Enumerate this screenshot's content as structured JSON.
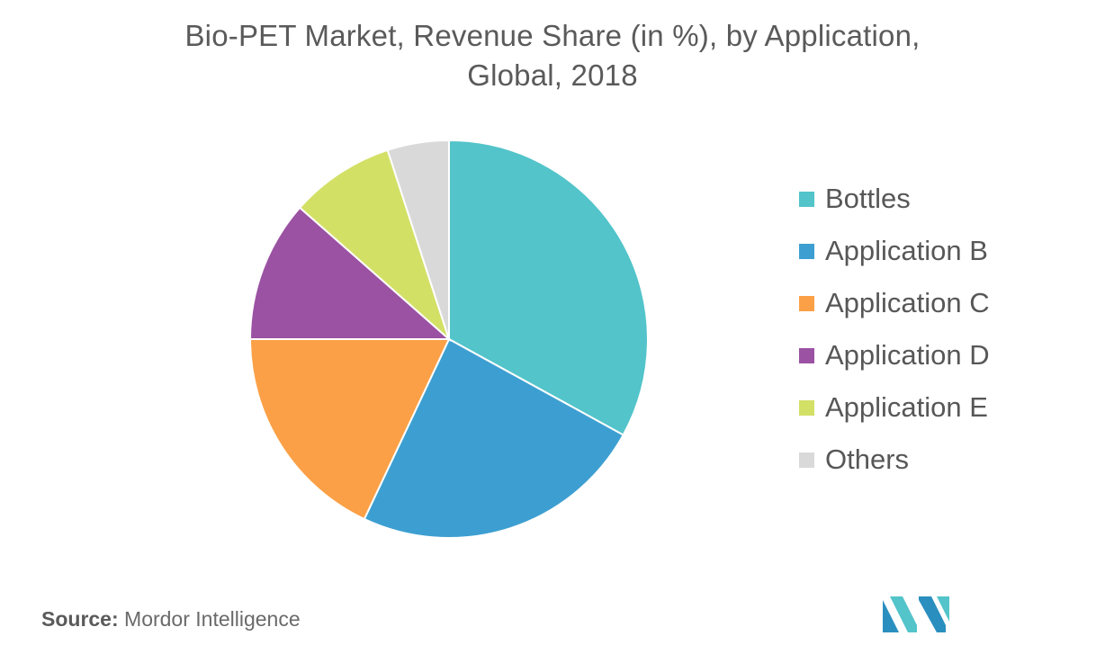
{
  "chart_data": {
    "type": "pie",
    "title_lines": [
      "Bio-PET Market, Revenue Share (in %), by Application,",
      "Global, 2018"
    ],
    "slices": [
      {
        "label": "Bottles",
        "value": 33.0,
        "color": "#52c4ca"
      },
      {
        "label": "Application B",
        "value": 24.0,
        "color": "#3d9fd1"
      },
      {
        "label": "Application C",
        "value": 18.0,
        "color": "#fba046"
      },
      {
        "label": "Application D",
        "value": 11.5,
        "color": "#9b52a3"
      },
      {
        "label": "Application E",
        "value": 8.5,
        "color": "#d3e066"
      },
      {
        "label": "Others",
        "value": 5.0,
        "color": "#d9d9d9"
      }
    ],
    "legend_position": "right"
  },
  "source": {
    "label": "Source:",
    "text": "Mordor Intelligence"
  },
  "logo": {
    "name": "mordor-intelligence-logo",
    "colors": [
      "#2a8fbf",
      "#52c4ca"
    ]
  }
}
